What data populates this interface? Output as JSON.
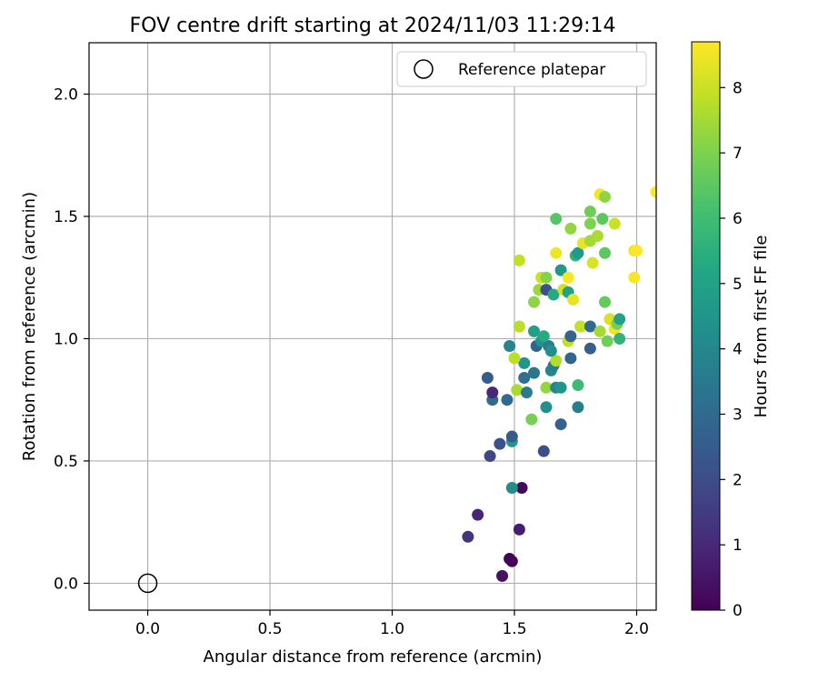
{
  "chart_data": {
    "type": "scatter",
    "title": "FOV centre drift starting at 2024/11/03 11:29:14",
    "xlabel": "Angular distance from reference (arcmin)",
    "ylabel": "Rotation from reference (arcmin)",
    "xlim": [
      -0.24,
      2.08
    ],
    "ylim": [
      -0.11,
      2.21
    ],
    "xticks": [
      0.0,
      0.5,
      1.0,
      1.5,
      2.0
    ],
    "xtick_labels": [
      "0.0",
      "0.5",
      "1.0",
      "1.5",
      "2.0"
    ],
    "yticks": [
      0.0,
      0.5,
      1.0,
      1.5,
      2.0
    ],
    "ytick_labels": [
      "0.0",
      "0.5",
      "1.0",
      "1.5",
      "2.0"
    ],
    "grid": true,
    "legend": {
      "placement": "top-right",
      "entries": [
        {
          "label": "Reference platepar",
          "marker": "open-circle"
        }
      ]
    },
    "reference_point": {
      "x": 0.0,
      "y": 0.0
    },
    "colorbar": {
      "label": "Hours from first FF file",
      "colormap": "viridis",
      "range": [
        0,
        8.7
      ],
      "ticks": [
        0,
        1,
        2,
        3,
        4,
        5,
        6,
        7,
        8
      ],
      "tick_labels": [
        "0",
        "1",
        "2",
        "3",
        "4",
        "5",
        "6",
        "7",
        "8"
      ]
    },
    "points": [
      {
        "x": 1.45,
        "y": 0.03,
        "c": 0.4
      },
      {
        "x": 1.48,
        "y": 0.1,
        "c": 0.1
      },
      {
        "x": 1.49,
        "y": 0.09,
        "c": 0.05
      },
      {
        "x": 1.52,
        "y": 0.22,
        "c": 0.7
      },
      {
        "x": 1.31,
        "y": 0.19,
        "c": 1.3
      },
      {
        "x": 1.35,
        "y": 0.28,
        "c": 0.9
      },
      {
        "x": 1.53,
        "y": 0.39,
        "c": 0.2
      },
      {
        "x": 1.49,
        "y": 0.39,
        "c": 4.2
      },
      {
        "x": 1.4,
        "y": 0.52,
        "c": 1.8
      },
      {
        "x": 1.44,
        "y": 0.57,
        "c": 2.2
      },
      {
        "x": 1.49,
        "y": 0.58,
        "c": 4.6
      },
      {
        "x": 1.49,
        "y": 0.6,
        "c": 2.5
      },
      {
        "x": 1.62,
        "y": 0.54,
        "c": 2.1
      },
      {
        "x": 1.69,
        "y": 0.65,
        "c": 2.7
      },
      {
        "x": 1.57,
        "y": 0.67,
        "c": 6.9
      },
      {
        "x": 1.76,
        "y": 0.72,
        "c": 3.7
      },
      {
        "x": 1.63,
        "y": 0.72,
        "c": 4.3
      },
      {
        "x": 1.41,
        "y": 0.75,
        "c": 3.0
      },
      {
        "x": 1.47,
        "y": 0.75,
        "c": 3.0
      },
      {
        "x": 1.41,
        "y": 0.78,
        "c": 1.0
      },
      {
        "x": 1.51,
        "y": 0.79,
        "c": 7.6
      },
      {
        "x": 1.55,
        "y": 0.78,
        "c": 3.6
      },
      {
        "x": 1.63,
        "y": 0.8,
        "c": 7.3
      },
      {
        "x": 1.67,
        "y": 0.8,
        "c": 3.9
      },
      {
        "x": 1.69,
        "y": 0.8,
        "c": 4.5
      },
      {
        "x": 1.76,
        "y": 0.81,
        "c": 5.9
      },
      {
        "x": 1.39,
        "y": 0.84,
        "c": 2.5
      },
      {
        "x": 1.54,
        "y": 0.84,
        "c": 3.2
      },
      {
        "x": 1.58,
        "y": 0.86,
        "c": 3.4
      },
      {
        "x": 1.65,
        "y": 0.87,
        "c": 4.0
      },
      {
        "x": 1.54,
        "y": 0.9,
        "c": 4.5
      },
      {
        "x": 1.5,
        "y": 0.92,
        "c": 7.8
      },
      {
        "x": 1.66,
        "y": 0.89,
        "c": 3.6
      },
      {
        "x": 1.67,
        "y": 0.91,
        "c": 7.7
      },
      {
        "x": 1.73,
        "y": 0.92,
        "c": 2.9
      },
      {
        "x": 1.48,
        "y": 0.97,
        "c": 3.9
      },
      {
        "x": 1.59,
        "y": 0.97,
        "c": 2.8
      },
      {
        "x": 1.61,
        "y": 0.99,
        "c": 4.4
      },
      {
        "x": 1.64,
        "y": 0.97,
        "c": 3.6
      },
      {
        "x": 1.65,
        "y": 0.95,
        "c": 4.3
      },
      {
        "x": 1.72,
        "y": 0.99,
        "c": 7.9
      },
      {
        "x": 1.81,
        "y": 0.96,
        "c": 2.6
      },
      {
        "x": 1.52,
        "y": 1.05,
        "c": 7.8
      },
      {
        "x": 1.58,
        "y": 1.03,
        "c": 4.9
      },
      {
        "x": 1.62,
        "y": 1.01,
        "c": 5.3
      },
      {
        "x": 1.73,
        "y": 1.01,
        "c": 2.8
      },
      {
        "x": 1.77,
        "y": 1.05,
        "c": 7.9
      },
      {
        "x": 1.81,
        "y": 1.05,
        "c": 3.0
      },
      {
        "x": 1.85,
        "y": 1.03,
        "c": 7.5
      },
      {
        "x": 1.88,
        "y": 0.99,
        "c": 6.8
      },
      {
        "x": 1.89,
        "y": 1.08,
        "c": 8.2
      },
      {
        "x": 1.91,
        "y": 1.04,
        "c": 8.5
      },
      {
        "x": 1.92,
        "y": 1.06,
        "c": 6.9
      },
      {
        "x": 1.93,
        "y": 1.08,
        "c": 5.0
      },
      {
        "x": 1.93,
        "y": 1.0,
        "c": 5.6
      },
      {
        "x": 1.58,
        "y": 1.15,
        "c": 7.2
      },
      {
        "x": 1.6,
        "y": 1.2,
        "c": 7.4
      },
      {
        "x": 1.63,
        "y": 1.2,
        "c": 2.2
      },
      {
        "x": 1.66,
        "y": 1.18,
        "c": 5.3
      },
      {
        "x": 1.7,
        "y": 1.2,
        "c": 8.1
      },
      {
        "x": 1.72,
        "y": 1.19,
        "c": 5.0
      },
      {
        "x": 1.74,
        "y": 1.16,
        "c": 8.4
      },
      {
        "x": 1.87,
        "y": 1.15,
        "c": 6.6
      },
      {
        "x": 1.61,
        "y": 1.25,
        "c": 8.0
      },
      {
        "x": 1.63,
        "y": 1.25,
        "c": 7.1
      },
      {
        "x": 1.69,
        "y": 1.28,
        "c": 4.6
      },
      {
        "x": 1.72,
        "y": 1.25,
        "c": 8.6
      },
      {
        "x": 1.99,
        "y": 1.25,
        "c": 8.6
      },
      {
        "x": 1.52,
        "y": 1.32,
        "c": 7.9
      },
      {
        "x": 1.67,
        "y": 1.35,
        "c": 8.5
      },
      {
        "x": 1.75,
        "y": 1.34,
        "c": 5.6
      },
      {
        "x": 1.76,
        "y": 1.35,
        "c": 4.7
      },
      {
        "x": 1.78,
        "y": 1.39,
        "c": 8.4
      },
      {
        "x": 1.81,
        "y": 1.4,
        "c": 7.5
      },
      {
        "x": 1.82,
        "y": 1.31,
        "c": 8.2
      },
      {
        "x": 1.84,
        "y": 1.42,
        "c": 7.6
      },
      {
        "x": 1.87,
        "y": 1.35,
        "c": 6.5
      },
      {
        "x": 1.99,
        "y": 1.36,
        "c": 8.5
      },
      {
        "x": 2.0,
        "y": 1.36,
        "c": 8.7
      },
      {
        "x": 1.67,
        "y": 1.49,
        "c": 6.4
      },
      {
        "x": 1.73,
        "y": 1.45,
        "c": 7.3
      },
      {
        "x": 1.81,
        "y": 1.47,
        "c": 7.0
      },
      {
        "x": 1.81,
        "y": 1.52,
        "c": 6.8
      },
      {
        "x": 1.86,
        "y": 1.49,
        "c": 6.5
      },
      {
        "x": 1.91,
        "y": 1.47,
        "c": 8.0
      },
      {
        "x": 1.85,
        "y": 1.59,
        "c": 8.6
      },
      {
        "x": 1.87,
        "y": 1.58,
        "c": 7.2
      },
      {
        "x": 2.08,
        "y": 1.6,
        "c": 8.7
      }
    ]
  }
}
